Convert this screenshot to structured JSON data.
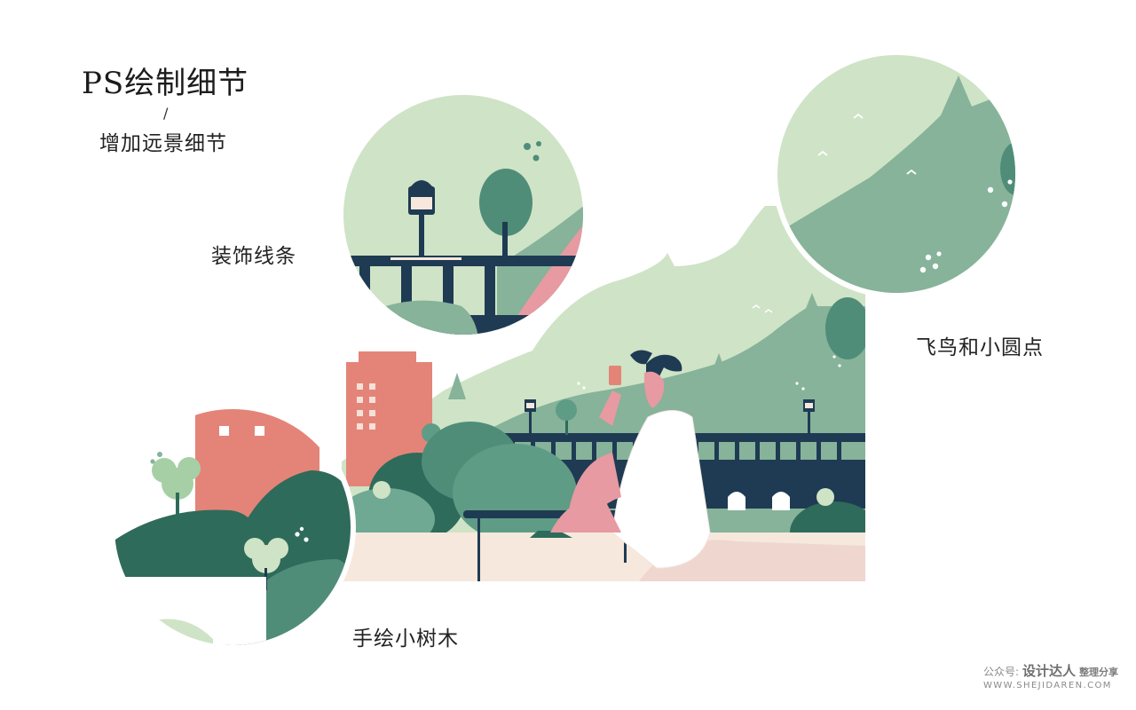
{
  "heading": {
    "title": "PS绘制细节",
    "slash": "/",
    "subtitle": "增加远景细节"
  },
  "callouts": {
    "decorative_lines": "装饰线条",
    "birds_and_dots": "飞鸟和小圆点",
    "hand_drawn_trees": "手绘小树木"
  },
  "watermark": {
    "prefix": "公众号:",
    "brand": "设计达人",
    "tag": "整理分享",
    "url": "WWW.SHEJIDAREN.COM"
  },
  "colors": {
    "pale_green": "#cfe3c6",
    "mid_green": "#86b39a",
    "dark_green": "#2e6b5a",
    "navy": "#1f3b53",
    "coral": "#e48478",
    "pink": "#e79aa1",
    "cream": "#f6e8dc"
  }
}
